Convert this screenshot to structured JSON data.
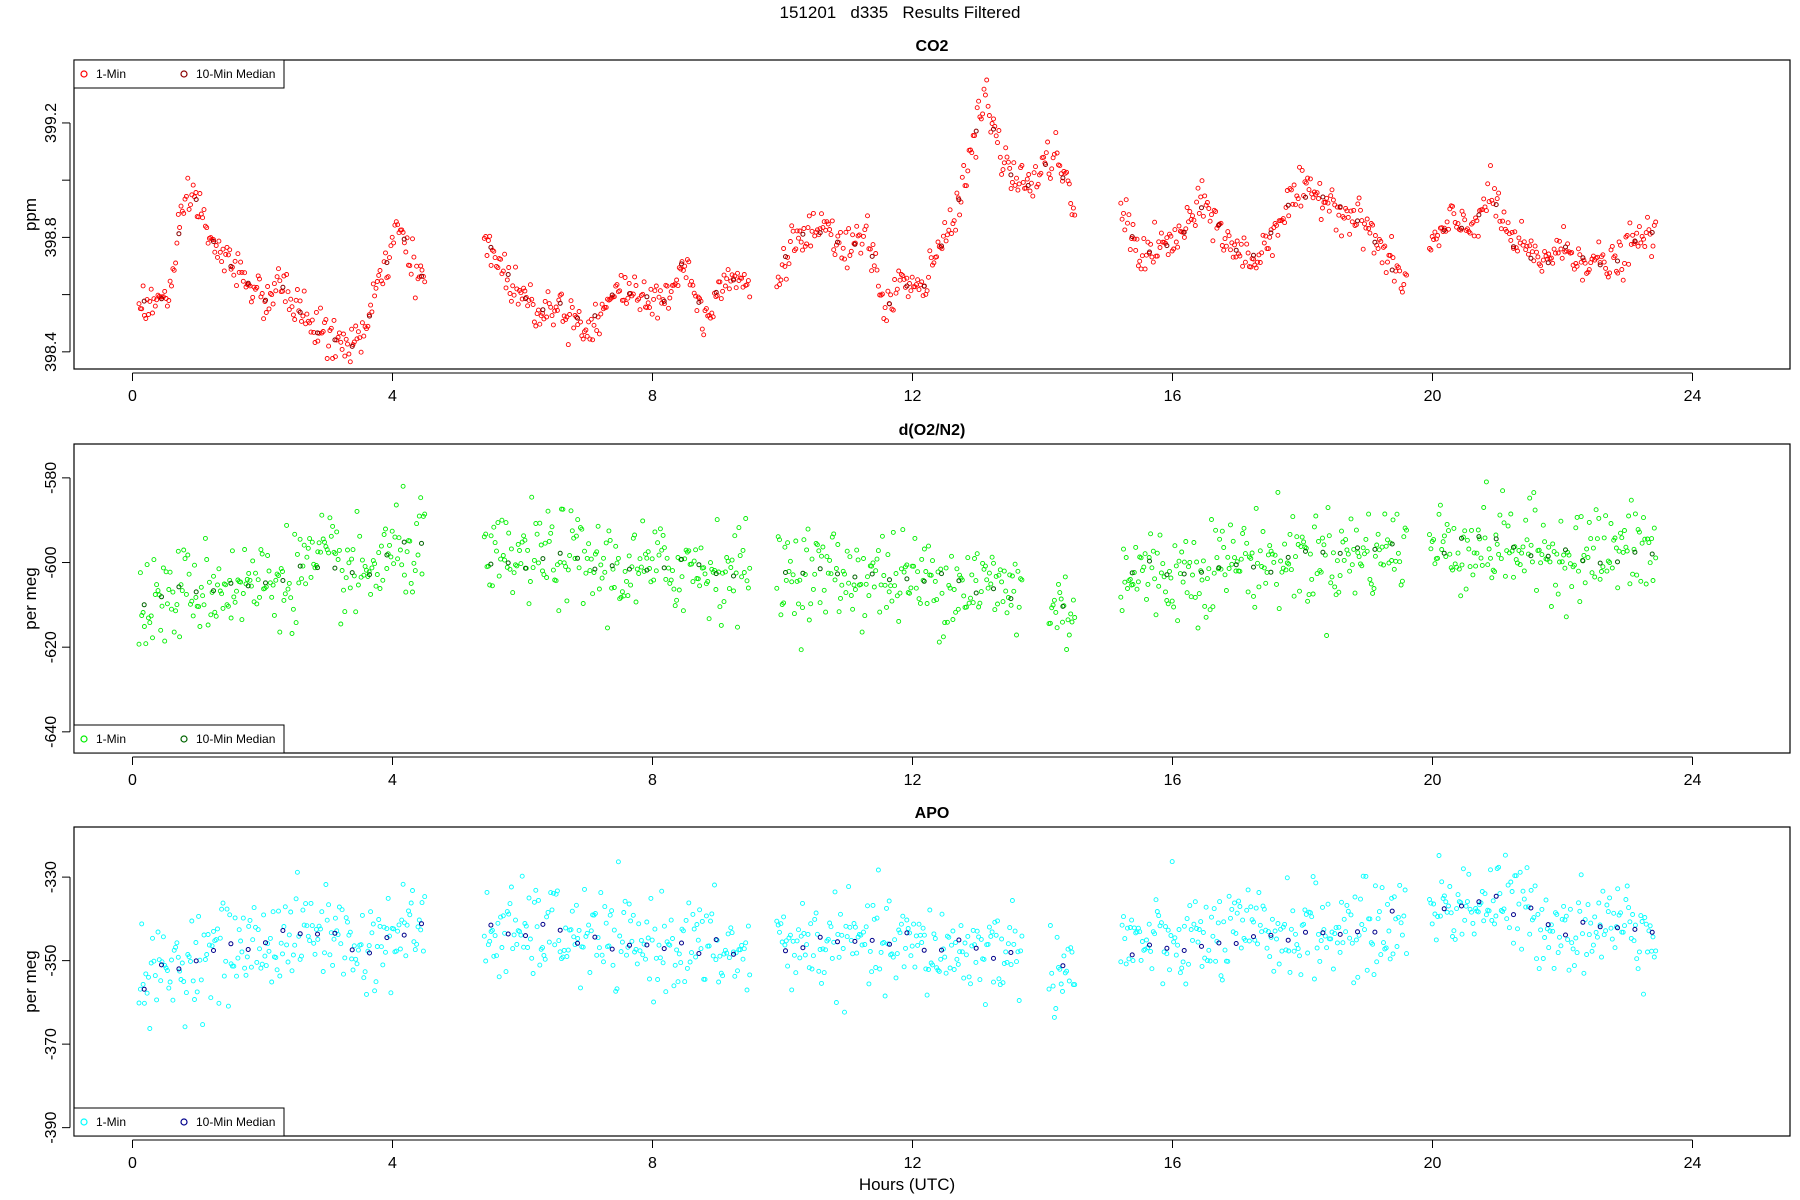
{
  "figure": {
    "title": "151201   d335   Results Filtered",
    "xlabel": "Hours (UTC)"
  },
  "chart_data": [
    {
      "type": "scatter",
      "title": "CO2",
      "ylabel": "ppm",
      "xlim": [
        -0.9,
        25.5
      ],
      "ylim": [
        398.34,
        399.42
      ],
      "xticks": [
        0,
        4,
        8,
        12,
        16,
        20,
        24
      ],
      "yticks": [
        398.4,
        398.6,
        398.8,
        399.0,
        399.2
      ],
      "ytick_labels": [
        "398.4",
        "",
        "398.8",
        "",
        "399.2"
      ],
      "legend": {
        "position": "top-left",
        "entries": [
          "1-Min",
          "10-Min Median"
        ]
      },
      "colors": {
        "one_min": "#ff0000",
        "median": "#8b0000"
      },
      "gaps": [
        [
          4.5,
          5.4
        ],
        [
          9.5,
          9.9
        ],
        [
          14.5,
          15.2
        ],
        [
          19.6,
          19.95
        ]
      ],
      "x_range": [
        0.1,
        23.45
      ],
      "noise": 0.035,
      "profile": [
        [
          0.1,
          398.58
        ],
        [
          0.3,
          398.56
        ],
        [
          0.6,
          398.62
        ],
        [
          0.8,
          398.92
        ],
        [
          0.95,
          398.95
        ],
        [
          1.3,
          398.74
        ],
        [
          1.7,
          398.68
        ],
        [
          2.0,
          398.57
        ],
        [
          2.3,
          398.63
        ],
        [
          2.6,
          398.54
        ],
        [
          3.0,
          398.45
        ],
        [
          3.3,
          398.42
        ],
        [
          3.6,
          398.48
        ],
        [
          3.9,
          398.72
        ],
        [
          4.1,
          398.82
        ],
        [
          4.4,
          398.65
        ],
        [
          5.4,
          398.8
        ],
        [
          5.8,
          398.65
        ],
        [
          6.2,
          398.55
        ],
        [
          6.6,
          398.56
        ],
        [
          7.0,
          398.48
        ],
        [
          7.4,
          398.6
        ],
        [
          7.8,
          398.62
        ],
        [
          8.1,
          398.55
        ],
        [
          8.5,
          398.72
        ],
        [
          8.8,
          398.5
        ],
        [
          9.1,
          398.68
        ],
        [
          9.5,
          398.63
        ],
        [
          9.9,
          398.64
        ],
        [
          10.2,
          398.8
        ],
        [
          10.6,
          398.82
        ],
        [
          11.0,
          398.76
        ],
        [
          11.3,
          398.8
        ],
        [
          11.6,
          398.55
        ],
        [
          11.8,
          398.65
        ],
        [
          12.1,
          398.6
        ],
        [
          12.5,
          398.8
        ],
        [
          12.8,
          399.0
        ],
        [
          13.1,
          399.3
        ],
        [
          13.4,
          399.05
        ],
        [
          13.8,
          398.98
        ],
        [
          14.2,
          399.1
        ],
        [
          14.5,
          398.88
        ],
        [
          15.2,
          398.9
        ],
        [
          15.5,
          398.74
        ],
        [
          16.0,
          398.78
        ],
        [
          16.5,
          398.92
        ],
        [
          16.9,
          398.76
        ],
        [
          17.3,
          398.72
        ],
        [
          17.6,
          398.85
        ],
        [
          17.9,
          398.95
        ],
        [
          18.3,
          398.95
        ],
        [
          18.7,
          398.88
        ],
        [
          19.0,
          398.84
        ],
        [
          19.3,
          398.72
        ],
        [
          19.6,
          398.64
        ],
        [
          19.95,
          398.76
        ],
        [
          20.3,
          398.85
        ],
        [
          20.6,
          398.84
        ],
        [
          20.9,
          398.95
        ],
        [
          21.2,
          398.8
        ],
        [
          21.6,
          398.72
        ],
        [
          22.0,
          398.76
        ],
        [
          22.4,
          398.72
        ],
        [
          22.8,
          398.7
        ],
        [
          23.1,
          398.78
        ],
        [
          23.45,
          398.82
        ]
      ]
    },
    {
      "type": "scatter",
      "title": "d(O2/N2)",
      "ylabel": "per meg",
      "xlim": [
        -0.9,
        25.5
      ],
      "ylim": [
        -645,
        -572
      ],
      "xticks": [
        0,
        4,
        8,
        12,
        16,
        20,
        24
      ],
      "yticks": [
        -640,
        -620,
        -600,
        -580
      ],
      "ytick_labels": [
        "-640",
        "-620",
        "-600",
        "-580"
      ],
      "legend": {
        "position": "bottom-left",
        "entries": [
          "1-Min",
          "10-Min Median"
        ]
      },
      "colors": {
        "one_min": "#00ee00",
        "median": "#006400"
      },
      "gaps": [
        [
          4.5,
          5.4
        ],
        [
          9.5,
          9.9
        ],
        [
          13.7,
          14.1
        ],
        [
          14.5,
          15.2
        ],
        [
          19.6,
          19.95
        ]
      ],
      "x_range": [
        0.1,
        23.45
      ],
      "noise": 5.5,
      "profile": [
        [
          0.1,
          -611
        ],
        [
          1.0,
          -606
        ],
        [
          2.0,
          -605
        ],
        [
          3.0,
          -600
        ],
        [
          3.5,
          -604
        ],
        [
          4.0,
          -598
        ],
        [
          4.5,
          -596
        ],
        [
          5.4,
          -601
        ],
        [
          6.5,
          -598
        ],
        [
          7.5,
          -602
        ],
        [
          8.5,
          -601
        ],
        [
          9.5,
          -602
        ],
        [
          9.9,
          -602
        ],
        [
          11.0,
          -603
        ],
        [
          12.0,
          -604
        ],
        [
          13.0,
          -605
        ],
        [
          13.7,
          -607
        ],
        [
          14.2,
          -611
        ],
        [
          14.5,
          -611
        ],
        [
          15.2,
          -602
        ],
        [
          16.0,
          -603
        ],
        [
          17.0,
          -599
        ],
        [
          18.0,
          -599
        ],
        [
          19.0,
          -598
        ],
        [
          19.6,
          -596
        ],
        [
          19.95,
          -596
        ],
        [
          21.0,
          -596
        ],
        [
          22.0,
          -598
        ],
        [
          23.45,
          -597
        ]
      ]
    },
    {
      "type": "scatter",
      "title": "APO",
      "ylabel": "per meg",
      "xlim": [
        -0.9,
        25.5
      ],
      "ylim": [
        -392,
        -318
      ],
      "xticks": [
        0,
        4,
        8,
        12,
        16,
        20,
        24
      ],
      "yticks": [
        -390,
        -370,
        -350,
        -330
      ],
      "ytick_labels": [
        "-390",
        "-370",
        "-350",
        "-330"
      ],
      "legend": {
        "position": "bottom-left",
        "entries": [
          "1-Min",
          "10-Min Median"
        ]
      },
      "colors": {
        "one_min": "#00ffff",
        "median": "#00008b"
      },
      "gaps": [
        [
          4.5,
          5.4
        ],
        [
          9.5,
          9.9
        ],
        [
          13.7,
          14.1
        ],
        [
          14.5,
          15.2
        ],
        [
          19.6,
          19.95
        ]
      ],
      "x_range": [
        0.1,
        23.45
      ],
      "noise": 5.5,
      "profile": [
        [
          0.1,
          -356
        ],
        [
          1.0,
          -349
        ],
        [
          2.0,
          -346
        ],
        [
          3.0,
          -342
        ],
        [
          3.5,
          -348
        ],
        [
          4.0,
          -344
        ],
        [
          4.5,
          -341
        ],
        [
          5.4,
          -344
        ],
        [
          6.5,
          -343
        ],
        [
          7.5,
          -346
        ],
        [
          8.5,
          -346
        ],
        [
          9.5,
          -349
        ],
        [
          9.9,
          -346
        ],
        [
          11.0,
          -346
        ],
        [
          12.0,
          -347
        ],
        [
          13.0,
          -348
        ],
        [
          13.7,
          -347
        ],
        [
          14.2,
          -352
        ],
        [
          14.5,
          -352
        ],
        [
          15.2,
          -346
        ],
        [
          16.0,
          -346
        ],
        [
          17.0,
          -344
        ],
        [
          18.0,
          -343
        ],
        [
          19.0,
          -343
        ],
        [
          19.6,
          -340
        ],
        [
          19.95,
          -337
        ],
        [
          21.0,
          -336
        ],
        [
          22.0,
          -342
        ],
        [
          23.45,
          -341
        ]
      ]
    }
  ]
}
